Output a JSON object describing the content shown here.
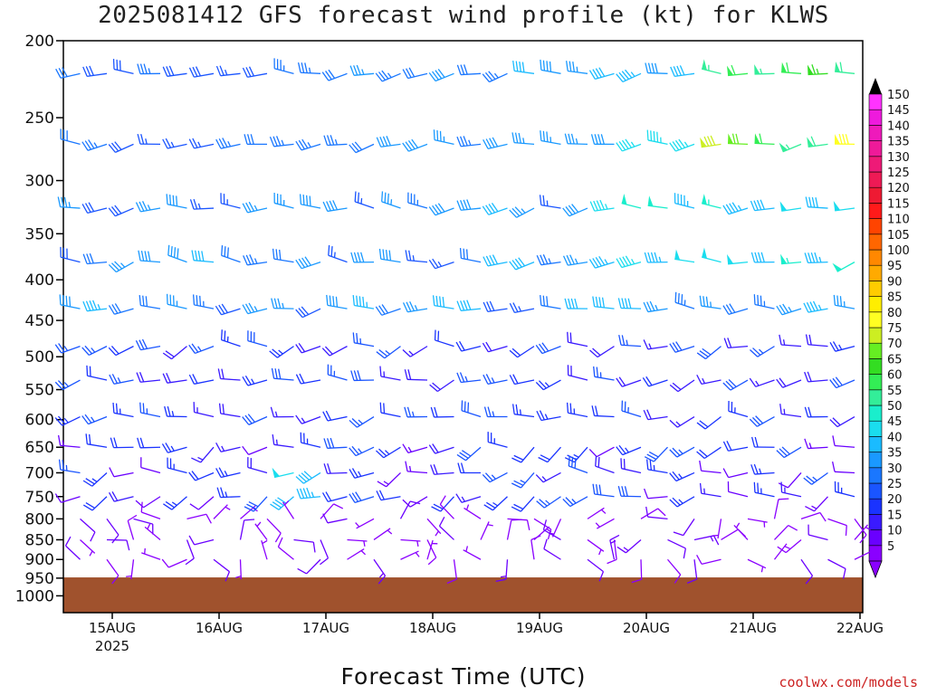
{
  "title": "2025081412 GFS forecast wind profile (kt) for KLWS",
  "credit": "coolwx.com/models",
  "chart_data": {
    "type": "wind-barb",
    "title": "2025081412 GFS forecast wind profile (kt) for KLWS",
    "xlabel": "Forecast Time (UTC)",
    "ylabel": "",
    "y_ticks": [
      200,
      250,
      300,
      350,
      400,
      450,
      500,
      550,
      600,
      650,
      700,
      750,
      800,
      850,
      900,
      950,
      1000
    ],
    "pressure_levels": [
      220,
      270,
      325,
      380,
      435,
      485,
      535,
      595,
      650,
      700,
      750,
      800,
      850,
      900,
      945
    ],
    "x_ticks": [
      {
        "label": "15AUG",
        "sub": "2025"
      },
      {
        "label": "16AUG",
        "sub": ""
      },
      {
        "label": "17AUG",
        "sub": ""
      },
      {
        "label": "18AUG",
        "sub": ""
      },
      {
        "label": "19AUG",
        "sub": ""
      },
      {
        "label": "20AUG",
        "sub": ""
      },
      {
        "label": "21AUG",
        "sub": ""
      },
      {
        "label": "22AUG",
        "sub": ""
      }
    ],
    "time_range": [
      "2025-08-14 12Z",
      "2025-08-22 00Z"
    ],
    "time_step_hours": 6,
    "surface_pressure_hpa": 948,
    "colorbar": {
      "levels": [
        5,
        10,
        15,
        20,
        25,
        30,
        35,
        40,
        45,
        50,
        55,
        60,
        65,
        70,
        75,
        80,
        85,
        90,
        95,
        100,
        105,
        110,
        115,
        120,
        125,
        130,
        135,
        140,
        145,
        150
      ],
      "colors": [
        "#8a00ff",
        "#6a00ff",
        "#3a1aff",
        "#1a33ff",
        "#1a55ff",
        "#1a77ff",
        "#1a99ff",
        "#1abbff",
        "#1addee",
        "#1aeecc",
        "#33ee99",
        "#33ee55",
        "#33dd22",
        "#66ee22",
        "#ccee22",
        "#ffff22",
        "#ffee00",
        "#ffcc00",
        "#ffaa00",
        "#ff8800",
        "#ff6600",
        "#ff4400",
        "#ff1a1a",
        "#ee1a33",
        "#ee1a55",
        "#ee1a77",
        "#ee1a99",
        "#ee1abb",
        "#ee1add",
        "#ff33ff"
      ]
    }
  }
}
